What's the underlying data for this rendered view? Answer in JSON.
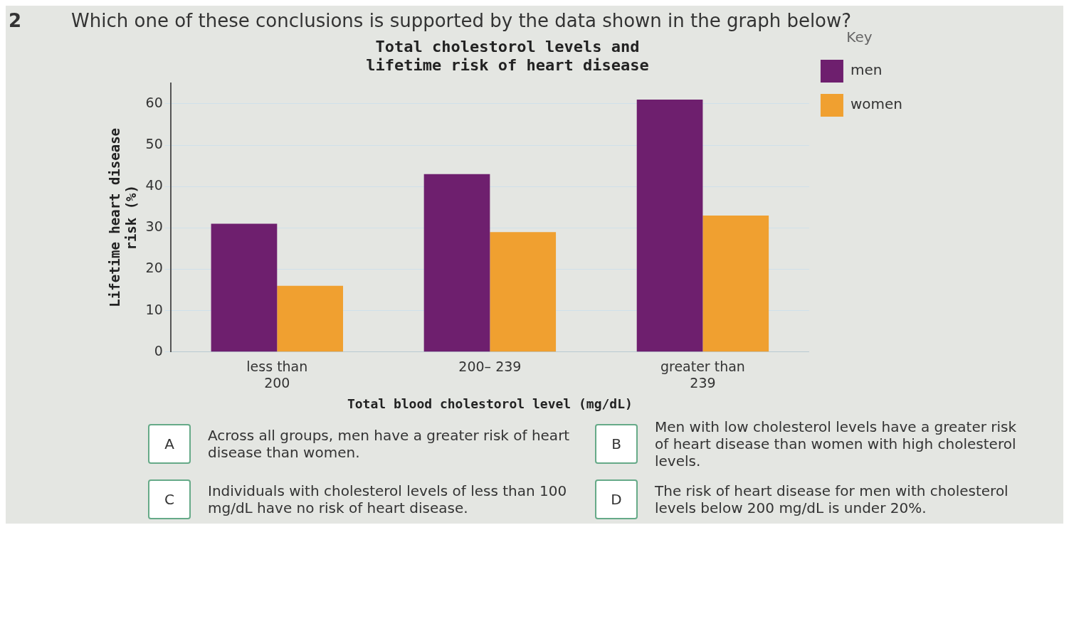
{
  "chart_data": {
    "type": "bar",
    "title": [
      "Total cholestorol levels and",
      "lifetime risk of heart disease"
    ],
    "xlabel": "Total blood cholestorol level (mg/dL)",
    "ylabel": [
      "Lifetime heart disease",
      "risk (%)"
    ],
    "categories": [
      [
        "less than",
        "200"
      ],
      "200– 239",
      [
        "greater than",
        "239"
      ]
    ],
    "series": [
      {
        "name": "men",
        "color": "#6e1f6e",
        "values": [
          31,
          43,
          61
        ]
      },
      {
        "name": "women",
        "color": "#f0a030",
        "values": [
          16,
          29,
          33
        ]
      }
    ],
    "ylim": [
      0,
      65
    ],
    "yticks": [
      0,
      10,
      20,
      30,
      40,
      50,
      60
    ],
    "grid": "y",
    "legend": "right",
    "legend_title": "Key",
    "annotations": [
      "2",
      "Which one of these conclusions is supported by the data shown in the graph below?",
      "A",
      "Across all groups, men have a greater risk of heart disease than women.",
      "B",
      "Men with low cholesterol levels have a greater risk of heart disease than women with high cholesterol levels.",
      "C",
      "Individuals with cholesterol levels of less than 100 mg/dL have no risk of heart disease.",
      "D",
      "The risk of heart disease for men with cholesterol levels below 200 mg/dL is under 20%."
    ]
  }
}
